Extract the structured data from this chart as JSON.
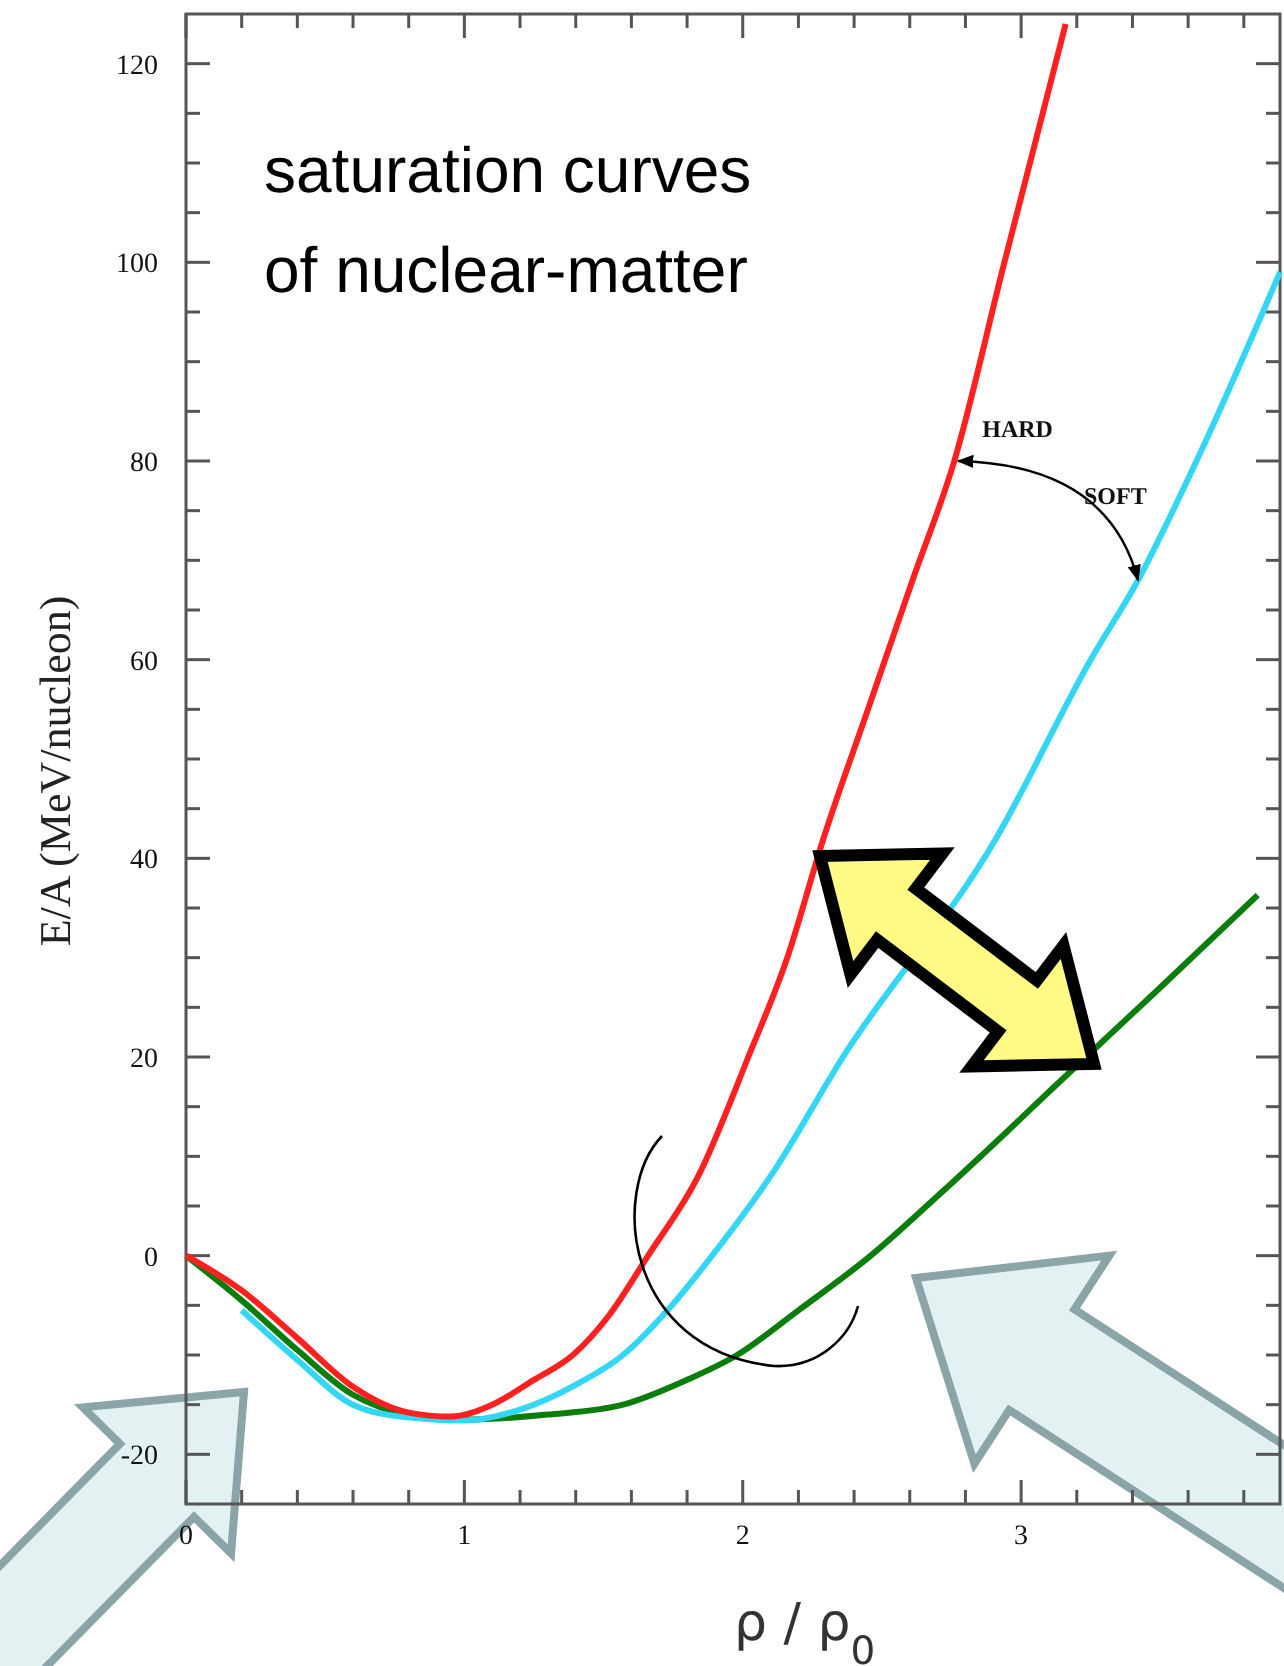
{
  "chart_data": {
    "type": "line",
    "title": "saturation curves\nof nuclear-matter",
    "xlabel": "ρ / ρ$_{0}$",
    "ylabel": "E/A (MeV/nucleon)",
    "xlim": [
      0,
      3.93
    ],
    "ylim": [
      -25,
      125
    ],
    "xticks": [
      0,
      {
        "value": 0.2,
        "label": null
      },
      {
        "value": 0.4,
        "label": null
      },
      {
        "value": 0.6,
        "label": null
      },
      {
        "value": 0.8,
        "label": null
      },
      1,
      {
        "value": 1.2,
        "label": null
      },
      {
        "value": 1.4,
        "label": null
      },
      {
        "value": 1.6,
        "label": null
      },
      {
        "value": 1.8,
        "label": null
      },
      2,
      {
        "value": 2.2,
        "label": null
      },
      {
        "value": 2.4,
        "label": null
      },
      {
        "value": 2.6,
        "label": null
      },
      {
        "value": 2.8,
        "label": null
      },
      3,
      {
        "value": 3.2,
        "label": null
      },
      {
        "value": 3.4,
        "label": null
      },
      {
        "value": 3.6,
        "label": null
      },
      {
        "value": 3.8,
        "label": null
      }
    ],
    "yticks": [
      -20,
      {
        "value": -15,
        "label": null
      },
      {
        "value": -10,
        "label": null
      },
      {
        "value": -5,
        "label": null
      },
      0,
      {
        "value": 5,
        "label": null
      },
      {
        "value": 10,
        "label": null
      },
      {
        "value": 15,
        "label": null
      },
      20,
      {
        "value": 25,
        "label": null
      },
      {
        "value": 30,
        "label": null
      },
      {
        "value": 35,
        "label": null
      },
      40,
      {
        "value": 45,
        "label": null
      },
      {
        "value": 50,
        "label": null
      },
      {
        "value": 55,
        "label": null
      },
      60,
      {
        "value": 65,
        "label": null
      },
      {
        "value": 70,
        "label": null
      },
      {
        "value": 75,
        "label": null
      },
      80,
      {
        "value": 85,
        "label": null
      },
      {
        "value": 90,
        "label": null
      },
      {
        "value": 95,
        "label": null
      },
      100,
      {
        "value": 105,
        "label": null
      },
      {
        "value": 110,
        "label": null
      },
      {
        "value": 115,
        "label": null
      },
      120
    ],
    "grid": false,
    "marker": "none",
    "line_style": "solid",
    "series": [
      {
        "color": "#0a7d0a",
        "x": [
          0,
          0.2,
          0.4,
          0.6,
          0.8,
          1.0,
          1.3,
          1.57,
          1.8,
          1.98,
          2.2,
          2.46,
          2.7,
          2.95,
          3.1,
          3.5,
          3.85
        ],
        "values": [
          0,
          -4.5,
          -9.5,
          -14,
          -16,
          -16.5,
          -16,
          -15,
          -12.5,
          -10,
          -5.5,
          0,
          6,
          12.5,
          16.5,
          27,
          36.3
        ]
      },
      {
        "color": "#33d6f5",
        "x": [
          0.2,
          0.4,
          0.6,
          0.8,
          1.0,
          1.2,
          1.4,
          1.57,
          1.73,
          1.89,
          2.1,
          2.36,
          2.91,
          3.25,
          3.42,
          3.63,
          3.93
        ],
        "values": [
          -5.5,
          -10.5,
          -15,
          -16.3,
          -16.6,
          -15.5,
          -13,
          -10,
          -5.5,
          0,
          8,
          20,
          42,
          60,
          68,
          80,
          99
        ]
      },
      {
        "color": "#ff2020",
        "x": [
          0,
          0.2,
          0.4,
          0.6,
          0.8,
          0.95,
          1.1,
          1.25,
          1.39,
          1.52,
          1.66,
          1.84,
          2.02,
          2.16,
          2.29,
          2.45,
          2.61,
          2.76,
          2.94,
          3.05,
          3.16
        ],
        "values": [
          0,
          -3.5,
          -8.3,
          -13.2,
          -15.8,
          -16.2,
          -15,
          -12.5,
          -10,
          -6,
          0,
          8,
          20,
          30,
          42,
          55,
          68,
          80,
          100,
          112,
          124
        ]
      }
    ],
    "annotations": [
      {
        "text": "HARD",
        "x": 2.76,
        "y": 80
      },
      {
        "text": "SOFT",
        "x": 3.42,
        "y": 68
      }
    ]
  }
}
